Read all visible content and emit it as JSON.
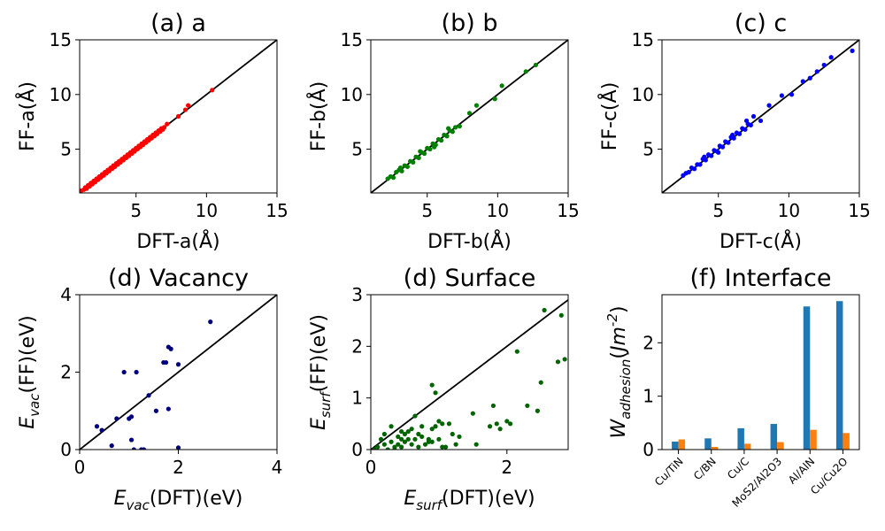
{
  "chart_data": [
    {
      "id": "a",
      "type": "scatter",
      "title": "(a) a",
      "xlabel": "DFT-a(Å)",
      "ylabel": "FF-a(Å)",
      "xlim": [
        1,
        15
      ],
      "ylim": [
        1,
        15
      ],
      "xticks": [
        5,
        10,
        15
      ],
      "yticks": [
        5,
        10,
        15
      ],
      "diagonal": true,
      "color": "#ff0000",
      "x": [
        1.1,
        1.3,
        1.4,
        1.5,
        1.6,
        1.7,
        1.8,
        1.9,
        2.0,
        2.1,
        2.2,
        2.3,
        2.4,
        2.5,
        2.6,
        2.7,
        2.8,
        2.9,
        3.0,
        3.1,
        3.2,
        3.3,
        3.4,
        3.5,
        3.6,
        3.7,
        3.8,
        3.9,
        4.0,
        4.1,
        4.2,
        4.3,
        4.4,
        4.5,
        4.6,
        4.7,
        4.8,
        4.9,
        5.0,
        5.1,
        5.2,
        5.3,
        5.4,
        5.5,
        5.6,
        5.7,
        5.8,
        5.9,
        6.0,
        6.1,
        6.2,
        6.3,
        6.4,
        6.5,
        6.6,
        6.7,
        6.8,
        6.9,
        7.0,
        7.2,
        8.0,
        8.5,
        8.7,
        10.4
      ],
      "y": [
        1.2,
        1.3,
        1.5,
        1.4,
        1.7,
        1.6,
        1.9,
        1.8,
        2.1,
        2.0,
        2.3,
        2.2,
        2.5,
        2.4,
        2.7,
        2.6,
        2.9,
        2.8,
        3.1,
        3.0,
        3.3,
        3.2,
        3.5,
        3.4,
        3.7,
        3.6,
        3.9,
        3.8,
        4.1,
        4.0,
        4.3,
        4.2,
        4.5,
        4.4,
        4.7,
        4.6,
        4.9,
        4.8,
        5.1,
        5.0,
        5.3,
        5.2,
        5.5,
        5.4,
        5.7,
        5.6,
        5.9,
        5.8,
        6.1,
        6.0,
        6.3,
        6.2,
        6.5,
        6.4,
        6.7,
        6.6,
        6.9,
        6.8,
        7.0,
        7.3,
        8.0,
        8.6,
        9.0,
        10.4
      ]
    },
    {
      "id": "b",
      "type": "scatter",
      "title": "(b) b",
      "xlabel": "DFT-b(Å)",
      "ylabel": "FF-b(Å)",
      "xlim": [
        1,
        15
      ],
      "ylim": [
        1,
        15
      ],
      "xticks": [
        5,
        10,
        15
      ],
      "yticks": [
        5,
        10,
        15
      ],
      "diagonal": true,
      "color": "#008000",
      "x": [
        2.2,
        2.4,
        2.6,
        2.8,
        3.0,
        3.2,
        3.4,
        3.6,
        3.8,
        4.0,
        4.2,
        4.4,
        4.6,
        4.8,
        5.0,
        5.2,
        5.4,
        5.6,
        5.8,
        6.0,
        6.2,
        6.4,
        6.6,
        6.8,
        7.0,
        7.3,
        8.0,
        8.5,
        9.8,
        10.3,
        12.0,
        12.7,
        3.1,
        4.5,
        5.5,
        6.5
      ],
      "y": [
        2.3,
        2.5,
        2.4,
        2.9,
        3.1,
        3.0,
        3.5,
        3.4,
        3.9,
        3.8,
        4.3,
        4.2,
        4.7,
        4.6,
        5.1,
        5.0,
        5.5,
        5.4,
        5.9,
        5.8,
        6.3,
        6.2,
        6.7,
        6.6,
        7.0,
        7.1,
        8.3,
        9.0,
        9.6,
        10.8,
        12.1,
        12.7,
        3.3,
        4.8,
        5.2,
        6.9
      ]
    },
    {
      "id": "c",
      "type": "scatter",
      "title": "(c) c",
      "xlabel": "DFT-c(Å)",
      "ylabel": "FF-c(Å)",
      "xlim": [
        1,
        15
      ],
      "ylim": [
        1,
        15
      ],
      "xticks": [
        5,
        10,
        15
      ],
      "yticks": [
        5,
        10,
        15
      ],
      "diagonal": true,
      "color": "#0000ff",
      "x": [
        2.5,
        2.7,
        2.9,
        3.1,
        3.3,
        3.5,
        3.7,
        3.9,
        4.1,
        4.3,
        4.5,
        4.7,
        4.9,
        5.1,
        5.3,
        5.5,
        5.7,
        5.9,
        6.1,
        6.3,
        6.5,
        6.7,
        6.9,
        7.1,
        7.3,
        7.5,
        8.0,
        8.6,
        9.5,
        10.2,
        11.0,
        11.5,
        12.0,
        12.5,
        13.0,
        14.5,
        4.0,
        5.0,
        6.0,
        7.0
      ],
      "y": [
        2.6,
        2.8,
        2.9,
        3.3,
        3.2,
        3.6,
        3.6,
        4.1,
        4.0,
        4.5,
        4.4,
        4.9,
        4.8,
        5.3,
        5.2,
        5.7,
        5.6,
        6.1,
        6.0,
        6.5,
        6.4,
        6.9,
        6.8,
        7.3,
        7.2,
        8.0,
        7.6,
        9.0,
        9.9,
        10.0,
        11.2,
        11.5,
        12.1,
        12.7,
        13.4,
        14.0,
        4.3,
        4.7,
        6.3,
        7.6
      ]
    },
    {
      "id": "d",
      "type": "scatter",
      "title": "(d) Vacancy",
      "xlabel": "E_vac(DFT)(eV)",
      "ylabel": "E_vac(FF)(eV)",
      "xlim": [
        0,
        4
      ],
      "ylim": [
        0,
        4
      ],
      "xticks": [
        0,
        2,
        4
      ],
      "yticks": [
        0,
        2,
        4
      ],
      "diagonal": true,
      "color": "#00007f",
      "x": [
        0.35,
        0.45,
        0.65,
        0.75,
        0.9,
        1.0,
        1.05,
        1.1,
        1.15,
        1.25,
        1.3,
        1.4,
        1.55,
        1.7,
        1.75,
        1.8,
        1.8,
        1.85,
        2.0,
        2.0,
        2.65,
        1.05
      ],
      "y": [
        0.6,
        0.5,
        0.1,
        0.8,
        2.0,
        0.8,
        0.25,
        0.0,
        2.0,
        0.0,
        0.0,
        1.4,
        1.0,
        2.25,
        2.25,
        2.65,
        1.05,
        2.6,
        2.2,
        0.05,
        3.3,
        0.85
      ]
    },
    {
      "id": "e",
      "type": "scatter",
      "title": "(d) Surface",
      "xlabel": "E_surf(DFT)(eV)",
      "ylabel": "E_surf(FF)(eV)",
      "xlim": [
        0,
        2.9
      ],
      "ylim": [
        0,
        3
      ],
      "xticks": [
        0,
        2
      ],
      "yticks": [
        0,
        1,
        2,
        3
      ],
      "diagonal": true,
      "color": "#006400",
      "x": [
        0.05,
        0.1,
        0.15,
        0.2,
        0.25,
        0.3,
        0.3,
        0.35,
        0.4,
        0.4,
        0.45,
        0.45,
        0.5,
        0.5,
        0.55,
        0.6,
        0.6,
        0.65,
        0.7,
        0.7,
        0.75,
        0.8,
        0.85,
        0.9,
        0.9,
        0.95,
        0.95,
        1.0,
        1.0,
        1.05,
        1.1,
        1.15,
        1.2,
        1.3,
        1.5,
        1.55,
        1.75,
        1.8,
        1.85,
        1.9,
        2.0,
        2.05,
        2.15,
        2.3,
        2.45,
        2.5,
        2.55,
        2.75,
        2.8,
        2.85,
        0.35,
        0.55,
        0.85,
        1.25,
        0.2,
        0.45,
        0.65,
        0.75,
        0.9,
        1.05
      ],
      "y": [
        0.0,
        0.05,
        0.2,
        0.3,
        0.0,
        0.15,
        0.45,
        0.05,
        0.1,
        0.25,
        0.2,
        0.05,
        0.3,
        0.15,
        0.35,
        0.1,
        0.4,
        0.65,
        0.3,
        0.05,
        0.45,
        0.1,
        0.15,
        0.4,
        1.25,
        1.1,
        0.45,
        0.55,
        0.2,
        0.5,
        0.05,
        0.5,
        0.3,
        0.25,
        0.7,
        0.1,
        0.45,
        0.85,
        0.5,
        0.4,
        0.55,
        0.5,
        1.9,
        0.85,
        0.75,
        1.3,
        2.7,
        1.7,
        2.6,
        1.75,
        0.0,
        0.2,
        0.2,
        0.1,
        0.1,
        0.35,
        0.2,
        0.25,
        0.15,
        0.05
      ]
    },
    {
      "id": "f",
      "type": "bar",
      "title": "(f) Interface",
      "ylabel": "W_adhesion(Jm^-2)",
      "categories": [
        "Cu/TiN",
        "C/BN",
        "Cu/C",
        "MoS2/Al2O3",
        "Al/AlN",
        "Cu/Cu2O"
      ],
      "series": [
        {
          "values": [
            0.15,
            0.21,
            0.4,
            0.48,
            2.68,
            2.78
          ],
          "color": "#1f77b4"
        },
        {
          "values": [
            0.19,
            0.05,
            0.11,
            0.14,
            0.37,
            0.31
          ],
          "color": "#ff7f0e"
        }
      ],
      "ylim": [
        0,
        2.9
      ],
      "yticks": [
        0,
        1,
        2
      ]
    }
  ]
}
